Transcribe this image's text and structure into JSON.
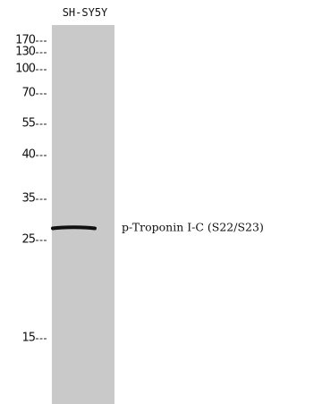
{
  "lane_label": "SH-SY5Y",
  "markers": [
    "170",
    "130",
    "100",
    "70",
    "55",
    "40",
    "35",
    "25",
    "15"
  ],
  "band_label": "p-Troponin I-C (S22/S23)"
}
